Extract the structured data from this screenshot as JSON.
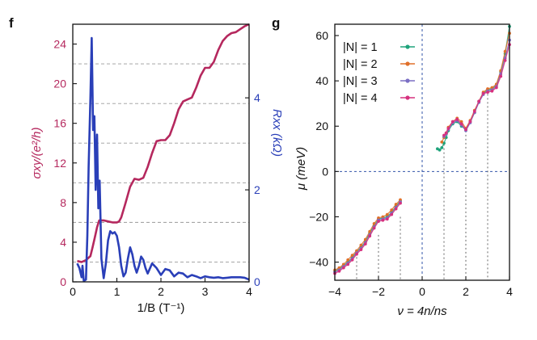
{
  "panels": {
    "f": {
      "label": "f"
    },
    "g": {
      "label": "g"
    }
  },
  "chart_data": [
    {
      "panel": "f",
      "type": "line",
      "xlabel": "1/B (T⁻¹)",
      "xlim": [
        0,
        4
      ],
      "x_ticks": [
        0,
        1,
        2,
        3,
        4
      ],
      "left_axis": {
        "label": "σxy/(e²/h)",
        "lim": [
          0,
          26
        ],
        "ticks": [
          0,
          4,
          8,
          12,
          16,
          20,
          24
        ],
        "color": "#b5285e"
      },
      "right_axis": {
        "label": "Rxx (kΩ)",
        "lim": [
          0,
          5.6
        ],
        "ticks": [
          0,
          2,
          4
        ],
        "color": "#2a3fb8"
      },
      "grid": {
        "style": "dashed-horizontal",
        "y_values": [
          2,
          6,
          10,
          14,
          18,
          22
        ]
      },
      "series": [
        {
          "axis": "left",
          "color": "#b5285e",
          "x": [
            0.1,
            0.2,
            0.3,
            0.4,
            0.45,
            0.5,
            0.55,
            0.6,
            0.7,
            0.8,
            0.9,
            1.0,
            1.05,
            1.1,
            1.2,
            1.3,
            1.4,
            1.5,
            1.6,
            1.7,
            1.8,
            1.9,
            2.0,
            2.1,
            2.2,
            2.3,
            2.4,
            2.5,
            2.6,
            2.7,
            2.8,
            2.9,
            3.0,
            3.1,
            3.2,
            3.3,
            3.4,
            3.5,
            3.6,
            3.7,
            3.8,
            3.9,
            4.0
          ],
          "y": [
            2.1,
            2.0,
            2.2,
            2.6,
            3.5,
            4.5,
            5.5,
            6.2,
            6.2,
            6.1,
            6.0,
            6.0,
            6.1,
            6.5,
            8.0,
            9.6,
            10.4,
            10.3,
            10.5,
            11.6,
            13.0,
            14.2,
            14.3,
            14.3,
            14.8,
            16.0,
            17.4,
            18.2,
            18.4,
            18.6,
            19.6,
            20.8,
            21.6,
            21.6,
            22.2,
            23.4,
            24.3,
            24.8,
            25.1,
            25.2,
            25.5,
            25.8,
            26.0
          ]
        },
        {
          "axis": "right",
          "color": "#2a3fb8",
          "x": [
            0.1,
            0.15,
            0.2,
            0.22,
            0.25,
            0.3,
            0.33,
            0.36,
            0.4,
            0.43,
            0.46,
            0.49,
            0.52,
            0.55,
            0.58,
            0.61,
            0.65,
            0.7,
            0.75,
            0.8,
            0.85,
            0.9,
            0.95,
            1.0,
            1.05,
            1.1,
            1.15,
            1.2,
            1.25,
            1.3,
            1.35,
            1.4,
            1.45,
            1.5,
            1.55,
            1.6,
            1.65,
            1.7,
            1.8,
            1.9,
            2.0,
            2.1,
            2.2,
            2.3,
            2.4,
            2.5,
            2.6,
            2.7,
            2.8,
            2.9,
            3.0,
            3.1,
            3.2,
            3.3,
            3.4,
            3.5,
            3.6,
            3.7,
            3.8,
            3.9,
            4.0
          ],
          "y": [
            0.4,
            0.3,
            0.1,
            0.35,
            0.02,
            0.05,
            1.0,
            2.5,
            4.0,
            5.3,
            3.3,
            3.6,
            2.0,
            3.2,
            1.6,
            2.2,
            0.5,
            0.08,
            0.4,
            0.9,
            1.1,
            1.05,
            1.08,
            1.0,
            0.75,
            0.35,
            0.12,
            0.2,
            0.5,
            0.75,
            0.6,
            0.35,
            0.2,
            0.35,
            0.55,
            0.48,
            0.3,
            0.18,
            0.4,
            0.3,
            0.15,
            0.28,
            0.25,
            0.12,
            0.2,
            0.18,
            0.1,
            0.15,
            0.12,
            0.08,
            0.12,
            0.1,
            0.09,
            0.1,
            0.08,
            0.09,
            0.1,
            0.1,
            0.1,
            0.09,
            0.05
          ]
        }
      ]
    },
    {
      "panel": "g",
      "type": "scatter",
      "xlabel": "ν = 4n/ns",
      "ylabel": "μ (meV)",
      "xlim": [
        -4,
        4
      ],
      "ylim": [
        -48,
        65
      ],
      "x_ticks": [
        -4,
        -2,
        0,
        2,
        4
      ],
      "y_ticks": [
        -40,
        -20,
        0,
        20,
        40,
        60
      ],
      "legend": {
        "position": "top-left"
      },
      "reference_lines": {
        "vertical": [
          -3,
          -2,
          -1,
          1,
          2,
          3
        ],
        "zero_lines": true
      },
      "series": [
        {
          "name": "|N| = 1",
          "color": "#1fa37b",
          "x": [
            -4.0,
            -3.8,
            -3.6,
            -3.4,
            -3.2,
            -3.0,
            -2.8,
            -2.6,
            -2.4,
            -2.2,
            -2.0,
            -1.8,
            -1.6,
            -1.4,
            -1.2,
            -1.0,
            0.7,
            0.8,
            0.9,
            1.0,
            1.1,
            1.2,
            1.4,
            1.6,
            1.8,
            2.0,
            2.2,
            2.4,
            2.6,
            2.8,
            3.0,
            3.2,
            3.4,
            3.6,
            3.8,
            4.0
          ],
          "y": [
            -44.0,
            -43.0,
            -41.5,
            -40.0,
            -38.0,
            -35.5,
            -33.5,
            -31.0,
            -27.0,
            -24.0,
            -21.0,
            -20.5,
            -20.0,
            -18.0,
            -15.5,
            -13.0,
            10.0,
            9.5,
            10.5,
            12.5,
            15.0,
            18.0,
            21.0,
            22.0,
            20.0,
            18.5,
            22.0,
            26.0,
            31.0,
            34.5,
            36.0,
            36.5,
            38.0,
            44.0,
            52.0,
            64.0
          ]
        },
        {
          "name": "|N| = 2",
          "color": "#e0702a",
          "x": [
            -4.0,
            -3.8,
            -3.6,
            -3.4,
            -3.2,
            -3.0,
            -2.8,
            -2.6,
            -2.4,
            -2.2,
            -2.0,
            -1.8,
            -1.6,
            -1.4,
            -1.2,
            -1.0,
            0.9,
            1.0,
            1.1,
            1.2,
            1.4,
            1.6,
            1.8,
            2.0,
            2.2,
            2.4,
            2.6,
            2.8,
            3.0,
            3.2,
            3.4,
            3.6,
            3.8,
            4.0
          ],
          "y": [
            -43.5,
            -42.5,
            -41.0,
            -39.0,
            -37.0,
            -35.0,
            -32.5,
            -30.0,
            -26.5,
            -23.0,
            -20.5,
            -20.0,
            -19.0,
            -17.0,
            -14.5,
            -12.5,
            13.0,
            15.0,
            17.0,
            19.5,
            22.0,
            23.5,
            22.0,
            19.0,
            22.5,
            27.0,
            31.0,
            35.0,
            36.5,
            37.0,
            38.5,
            44.5,
            53.0,
            61.0
          ]
        },
        {
          "name": "|N| = 3",
          "color": "#7b6fc4",
          "x": [
            -4.0,
            -3.8,
            -3.6,
            -3.4,
            -3.2,
            -3.0,
            -2.8,
            -2.6,
            -2.4,
            -2.2,
            -2.0,
            -1.8,
            -1.6,
            -1.4,
            -1.2,
            -1.0,
            1.0,
            1.1,
            1.2,
            1.4,
            1.6,
            1.8,
            2.0,
            2.2,
            2.4,
            2.6,
            2.8,
            3.0,
            3.2,
            3.4,
            3.6,
            3.8,
            4.0
          ],
          "y": [
            -44.5,
            -43.5,
            -42.0,
            -40.5,
            -38.5,
            -36.0,
            -34.0,
            -31.5,
            -28.0,
            -24.5,
            -21.5,
            -21.0,
            -20.5,
            -18.5,
            -16.0,
            -13.5,
            15.5,
            16.5,
            18.5,
            21.5,
            22.5,
            20.5,
            18.0,
            21.5,
            26.0,
            30.5,
            34.0,
            35.5,
            36.0,
            37.5,
            43.0,
            50.0,
            58.0
          ]
        },
        {
          "name": "|N| = 4",
          "color": "#d6317f",
          "x": [
            -4.0,
            -3.8,
            -3.6,
            -3.4,
            -3.2,
            -3.0,
            -2.8,
            -2.6,
            -2.4,
            -2.2,
            -2.0,
            -1.8,
            -1.6,
            -1.4,
            -1.2,
            -1.0,
            1.0,
            1.1,
            1.2,
            1.4,
            1.6,
            1.8,
            2.0,
            2.2,
            2.4,
            2.6,
            2.8,
            3.0,
            3.2,
            3.4,
            3.6,
            3.8,
            4.0
          ],
          "y": [
            -45.0,
            -44.0,
            -42.5,
            -41.0,
            -39.0,
            -36.5,
            -34.5,
            -32.0,
            -28.5,
            -25.0,
            -22.0,
            -21.5,
            -21.0,
            -19.0,
            -16.5,
            -14.0,
            16.0,
            17.0,
            19.0,
            22.0,
            23.0,
            21.0,
            18.5,
            22.0,
            26.5,
            31.0,
            34.5,
            35.0,
            35.5,
            37.0,
            42.0,
            49.0,
            56.0
          ]
        }
      ]
    }
  ]
}
